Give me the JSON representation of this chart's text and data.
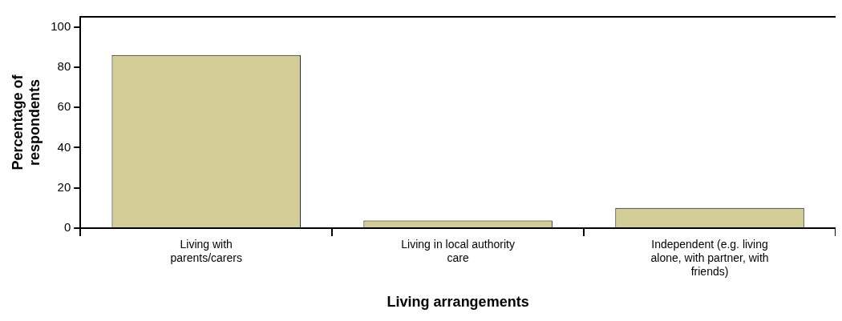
{
  "chart_data": {
    "type": "bar",
    "xlabel": "Living arrangements",
    "ylabel": "Percentage of respondents",
    "categories": [
      "Living with parents/carers",
      "Living in local authority care",
      "Independent (e.g. living alone, with partner, with friends)"
    ],
    "values": [
      86,
      3.8,
      10
    ],
    "color": "#d3ce98",
    "ylim": [
      0,
      105
    ],
    "yticks": [
      0,
      20,
      40,
      60,
      80,
      100
    ],
    "grid": false,
    "legend": false
  }
}
